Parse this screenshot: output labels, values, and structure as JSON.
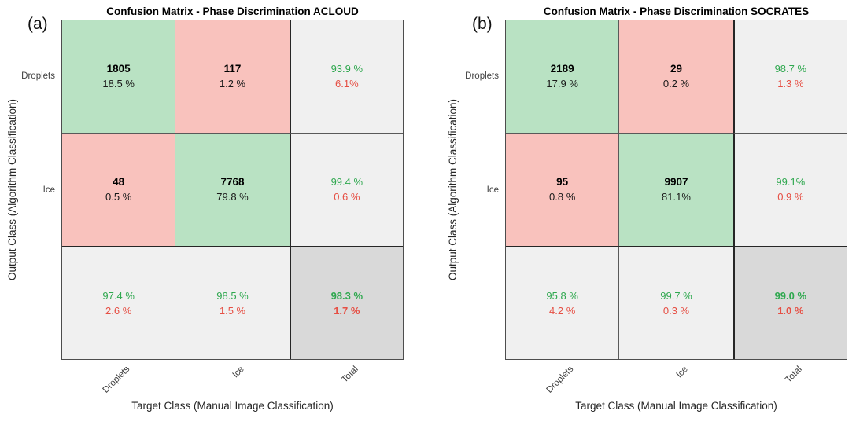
{
  "figure": {
    "panels": [
      {
        "corner_label": "(a)",
        "title": "Confusion Matrix - Phase Discrimination ACLOUD",
        "y_axis_label": "Output Class (Algorithm Classification)",
        "x_axis_label": "Target Class (Manual Image Classification)",
        "row_labels": [
          "Droplets",
          "Ice"
        ],
        "col_labels": [
          "Droplets",
          "Ice",
          "Total"
        ],
        "cells": [
          {
            "line1": "1805",
            "line2": "18.5 %"
          },
          {
            "line1": "117",
            "line2": "1.2 %"
          },
          {
            "line1": "93.9 %",
            "line2": "6.1%"
          },
          {
            "line1": "48",
            "line2": "0.5 %"
          },
          {
            "line1": "7768",
            "line2": "79.8 %"
          },
          {
            "line1": "99.4 %",
            "line2": "0.6 %"
          },
          {
            "line1": "97.4 %",
            "line2": "2.6 %"
          },
          {
            "line1": "98.5 %",
            "line2": "1.5 %"
          },
          {
            "line1": "98.3 %",
            "line2": "1.7 %"
          }
        ]
      },
      {
        "corner_label": "(b)",
        "title": "Confusion Matrix - Phase Discrimination SOCRATES",
        "y_axis_label": "Output Class (Algorithm Classification)",
        "x_axis_label": "Target Class (Manual Image Classification)",
        "row_labels": [
          "Droplets",
          "Ice"
        ],
        "col_labels": [
          "Droplets",
          "Ice",
          "Total"
        ],
        "cells": [
          {
            "line1": "2189",
            "line2": "17.9 %"
          },
          {
            "line1": "29",
            "line2": "0.2 %"
          },
          {
            "line1": "98.7 %",
            "line2": "1.3 %"
          },
          {
            "line1": "95",
            "line2": "0.8 %"
          },
          {
            "line1": "9907",
            "line2": "81.1%"
          },
          {
            "line1": "99.1%",
            "line2": "0.9 %"
          },
          {
            "line1": "95.8 %",
            "line2": "4.2 %"
          },
          {
            "line1": "99.7 %",
            "line2": "0.3 %"
          },
          {
            "line1": "99.0 %",
            "line2": "1.0 %"
          }
        ]
      }
    ]
  },
  "colors": {
    "correct_cell_green": "#b9e2c3",
    "error_cell_pink": "#f9c2bd",
    "summary_cell_gray": "#f0f0f0",
    "total_cell_dark_gray": "#d9d9d9",
    "positive_text_green": "#2fa84f",
    "negative_text_red": "#e64f44",
    "grid_line": "#595959",
    "thick_separator": "#262626"
  },
  "chart_data": [
    {
      "type": "heatmap",
      "subtype": "confusion-matrix",
      "panel_label": "(a)",
      "title": "Confusion Matrix - Phase Discrimination ACLOUD",
      "xlabel": "Target Class (Manual Image Classification)",
      "ylabel": "Output Class (Algorithm Classification)",
      "x_categories": [
        "Droplets",
        "Ice",
        "Total"
      ],
      "y_categories": [
        "Droplets",
        "Ice",
        "Total"
      ],
      "counts": [
        [
          1805,
          117
        ],
        [
          48,
          7768
        ]
      ],
      "percent_of_total": [
        [
          18.5,
          1.2
        ],
        [
          0.5,
          79.8
        ]
      ],
      "row_correct_pct": [
        93.9,
        99.4
      ],
      "row_error_pct": [
        6.1,
        0.6
      ],
      "col_correct_pct": [
        97.4,
        98.5
      ],
      "col_error_pct": [
        2.6,
        1.5
      ],
      "overall_correct_pct": 98.3,
      "overall_error_pct": 1.7,
      "legend_position": "none",
      "grid": true
    },
    {
      "type": "heatmap",
      "subtype": "confusion-matrix",
      "panel_label": "(b)",
      "title": "Confusion Matrix - Phase Discrimination SOCRATES",
      "xlabel": "Target Class (Manual Image Classification)",
      "ylabel": "Output Class (Algorithm Classification)",
      "x_categories": [
        "Droplets",
        "Ice",
        "Total"
      ],
      "y_categories": [
        "Droplets",
        "Ice",
        "Total"
      ],
      "counts": [
        [
          2189,
          29
        ],
        [
          95,
          9907
        ]
      ],
      "percent_of_total": [
        [
          17.9,
          0.2
        ],
        [
          0.8,
          81.1
        ]
      ],
      "row_correct_pct": [
        98.7,
        99.1
      ],
      "row_error_pct": [
        1.3,
        0.9
      ],
      "col_correct_pct": [
        95.8,
        99.7
      ],
      "col_error_pct": [
        4.2,
        0.3
      ],
      "overall_correct_pct": 99.0,
      "overall_error_pct": 1.0,
      "legend_position": "none",
      "grid": true
    }
  ]
}
